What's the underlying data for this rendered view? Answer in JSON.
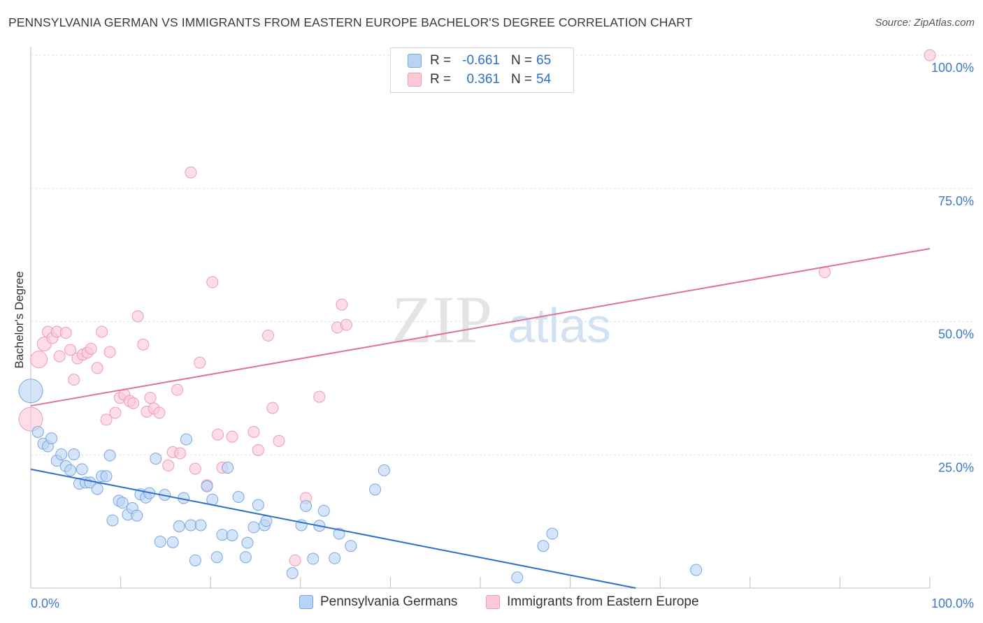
{
  "header": {
    "title": "PENNSYLVANIA GERMAN VS IMMIGRANTS FROM EASTERN EUROPE BACHELOR'S DEGREE CORRELATION CHART",
    "source": "Source: ZipAtlas.com"
  },
  "watermark": {
    "zip": "ZIP",
    "atlas": "atlas"
  },
  "legend": {
    "rows": [
      {
        "r_label": "R =",
        "r_value": "-0.661",
        "n_label": "N =",
        "n_value": "65",
        "fill": "#b9d3f5",
        "stroke": "#7ba6e2"
      },
      {
        "r_label": "R =",
        "r_value": "0.361",
        "n_label": "N =",
        "n_value": "54",
        "fill": "#fbc8d8",
        "stroke": "#ef9ab5"
      }
    ]
  },
  "chart_data": {
    "type": "scatter",
    "title": "PENNSYLVANIA GERMAN VS IMMIGRANTS FROM EASTERN EUROPE BACHELOR'S DEGREE CORRELATION CHART",
    "xlabel": "",
    "ylabel": "Bachelor's Degree",
    "xlim": [
      0,
      100
    ],
    "ylim": [
      0,
      100
    ],
    "x_tick_labels": [
      "0.0%",
      "100.0%"
    ],
    "y_tick_labels": [
      "25.0%",
      "50.0%",
      "75.0%",
      "100.0%"
    ],
    "y_ticks": [
      25,
      50,
      75,
      100
    ],
    "grid": true,
    "legend_position": "top-center",
    "series": [
      {
        "name": "Pennsylvania Germans",
        "color": "#7ba6e2",
        "fill": "#b9d3f5",
        "trend_color": "#2e6fc7",
        "trend": {
          "x": [
            0,
            67.3
          ],
          "y": [
            22.3,
            0
          ]
        },
        "points": [
          [
            0,
            37,
            3
          ],
          [
            0.8,
            29.3,
            1
          ],
          [
            1.4,
            27.1,
            1
          ],
          [
            1.9,
            26.6,
            1
          ],
          [
            2.3,
            28.1,
            1
          ],
          [
            2.9,
            23.9,
            1
          ],
          [
            3.4,
            25.1,
            1
          ],
          [
            3.9,
            22.9,
            1
          ],
          [
            4.4,
            22.1,
            1
          ],
          [
            4.8,
            25.1,
            1
          ],
          [
            5.4,
            19.6,
            1
          ],
          [
            5.7,
            22.3,
            1
          ],
          [
            6.1,
            19.8,
            1
          ],
          [
            6.6,
            19.8,
            1
          ],
          [
            7.4,
            18.6,
            1
          ],
          [
            7.9,
            21.0,
            1
          ],
          [
            8.4,
            21.0,
            1
          ],
          [
            8.8,
            24.9,
            1
          ],
          [
            9.1,
            12.7,
            1
          ],
          [
            9.8,
            16.4,
            1
          ],
          [
            10.2,
            16.0,
            1
          ],
          [
            10.8,
            13.8,
            1
          ],
          [
            11.3,
            15.0,
            1
          ],
          [
            11.8,
            13.6,
            1
          ],
          [
            12.2,
            17.6,
            1
          ],
          [
            12.8,
            17.0,
            1
          ],
          [
            13.2,
            17.8,
            1
          ],
          [
            13.9,
            24.3,
            1
          ],
          [
            14.4,
            8.7,
            1
          ],
          [
            14.9,
            17.5,
            1
          ],
          [
            15.8,
            8.6,
            1
          ],
          [
            16.5,
            11.6,
            1
          ],
          [
            17.0,
            16.9,
            1
          ],
          [
            17.3,
            27.9,
            1
          ],
          [
            17.8,
            11.8,
            1
          ],
          [
            18.3,
            5.2,
            1
          ],
          [
            18.9,
            11.8,
            1
          ],
          [
            19.6,
            19.1,
            1
          ],
          [
            20.2,
            16.6,
            1
          ],
          [
            20.7,
            5.8,
            1
          ],
          [
            21.3,
            10.0,
            1
          ],
          [
            21.9,
            22.6,
            1
          ],
          [
            22.4,
            9.9,
            1
          ],
          [
            23.1,
            17.1,
            1
          ],
          [
            23.9,
            5.8,
            1
          ],
          [
            24.1,
            8.5,
            1
          ],
          [
            24.8,
            11.4,
            1
          ],
          [
            25.3,
            15.6,
            1
          ],
          [
            26.0,
            11.8,
            1
          ],
          [
            26.2,
            12.6,
            1
          ],
          [
            29.1,
            2.8,
            1
          ],
          [
            30.1,
            11.8,
            1
          ],
          [
            30.6,
            15.4,
            1
          ],
          [
            31.4,
            5.5,
            1
          ],
          [
            32.1,
            11.7,
            1
          ],
          [
            32.6,
            14.5,
            1
          ],
          [
            33.8,
            5.6,
            1
          ],
          [
            34.3,
            10.2,
            1
          ],
          [
            35.6,
            7.9,
            1
          ],
          [
            38.3,
            18.5,
            1
          ],
          [
            39.3,
            22.1,
            1
          ],
          [
            54.1,
            2.0,
            1
          ],
          [
            57.0,
            7.9,
            1
          ],
          [
            58.0,
            10.2,
            1
          ],
          [
            74.0,
            3.4,
            1
          ]
        ]
      },
      {
        "name": "Immigrants from Eastern Europe",
        "color": "#ef9ab5",
        "fill": "#fbc8d8",
        "trend_color": "#e0719a",
        "trend": {
          "x": [
            0,
            100
          ],
          "y": [
            34.2,
            63.7
          ]
        },
        "points": [
          [
            0,
            31.7,
            3
          ],
          [
            0.9,
            42.9,
            2
          ],
          [
            1.5,
            45.8,
            1.5
          ],
          [
            1.9,
            48.1,
            1
          ],
          [
            2.4,
            46.9,
            1
          ],
          [
            2.9,
            48.1,
            1
          ],
          [
            3.2,
            43.5,
            1
          ],
          [
            3.9,
            47.9,
            1
          ],
          [
            4.4,
            44.7,
            1
          ],
          [
            4.8,
            39.1,
            1
          ],
          [
            5.2,
            43.1,
            1
          ],
          [
            5.8,
            43.8,
            1
          ],
          [
            6.3,
            44.2,
            1
          ],
          [
            6.7,
            44.9,
            1
          ],
          [
            7.4,
            41.3,
            1
          ],
          [
            7.9,
            48.1,
            1
          ],
          [
            8.4,
            31.6,
            1
          ],
          [
            8.8,
            44.3,
            1
          ],
          [
            9.4,
            32.9,
            1
          ],
          [
            9.9,
            35.7,
            1
          ],
          [
            10.4,
            36.3,
            1
          ],
          [
            11.0,
            35.1,
            1
          ],
          [
            11.4,
            34.7,
            1
          ],
          [
            11.9,
            51.0,
            1
          ],
          [
            12.5,
            45.7,
            1
          ],
          [
            12.9,
            33.1,
            1
          ],
          [
            13.3,
            35.7,
            1
          ],
          [
            13.7,
            33.7,
            1
          ],
          [
            14.3,
            32.9,
            1
          ],
          [
            15.3,
            23.0,
            1
          ],
          [
            15.8,
            25.5,
            1
          ],
          [
            16.3,
            37.2,
            1
          ],
          [
            16.6,
            25.3,
            1
          ],
          [
            17.8,
            78.0,
            1
          ],
          [
            18.3,
            22.4,
            1
          ],
          [
            18.8,
            42.3,
            1
          ],
          [
            19.6,
            19.3,
            1
          ],
          [
            20.2,
            57.4,
            1
          ],
          [
            20.8,
            28.8,
            1
          ],
          [
            21.3,
            22.6,
            1
          ],
          [
            22.4,
            28.4,
            1
          ],
          [
            24.8,
            29.3,
            1
          ],
          [
            25.3,
            25.9,
            1
          ],
          [
            26.4,
            47.4,
            1
          ],
          [
            26.9,
            33.8,
            1
          ],
          [
            27.6,
            27.6,
            1
          ],
          [
            29.4,
            5.2,
            1
          ],
          [
            30.6,
            16.9,
            1
          ],
          [
            32.1,
            35.9,
            1
          ],
          [
            34.1,
            48.9,
            1
          ],
          [
            34.6,
            53.2,
            1
          ],
          [
            35.1,
            49.4,
            1
          ],
          [
            88.3,
            59.3,
            1
          ],
          [
            100,
            100,
            1
          ]
        ]
      }
    ]
  }
}
